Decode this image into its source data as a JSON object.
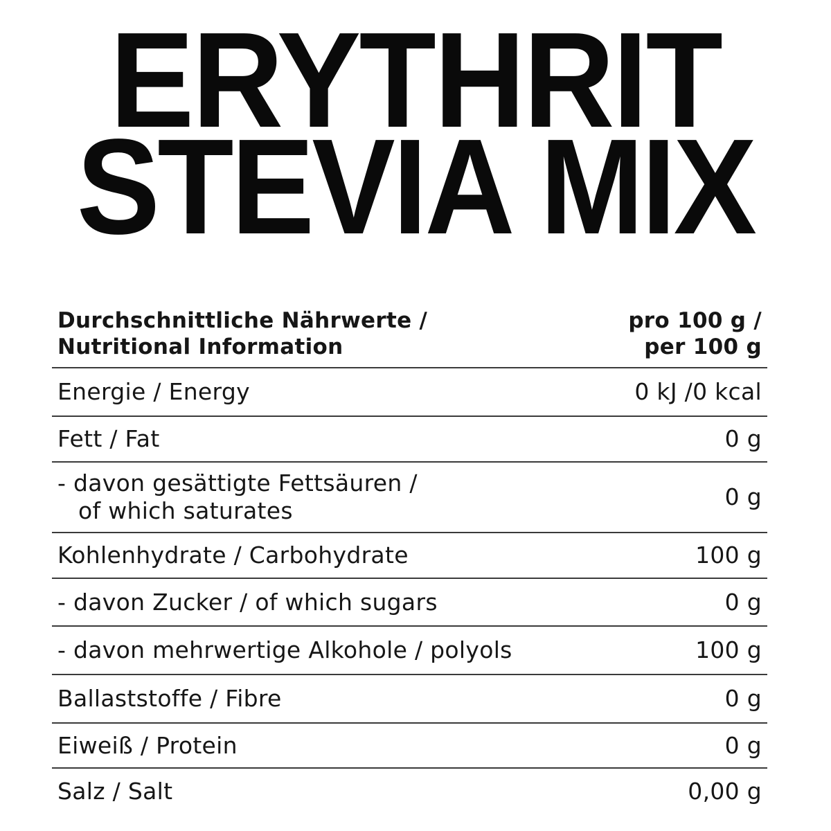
{
  "title": {
    "line1": "ERYTHRIT",
    "line2": "STEVIA MIX"
  },
  "table": {
    "header": {
      "label_de": "Durchschnittliche Nährwerte /",
      "label_en": "Nutritional Information",
      "value_de": "pro 100 g /",
      "value_en": "per 100 g"
    },
    "rows": [
      {
        "label": "Energie / Energy",
        "value": "0 kJ /0 kcal"
      },
      {
        "label": "Fett / Fat",
        "value": "0 g"
      },
      {
        "label": "- davon gesättigte Fettsäuren /",
        "label2": "of which saturates",
        "value": "0 g"
      },
      {
        "label": "Kohlenhydrate / Carbohydrate",
        "value": "100 g"
      },
      {
        "label": "- davon Zucker / of which sugars",
        "value": "0 g"
      },
      {
        "label": "- davon mehrwertige Alkohole / polyols",
        "value": "100 g"
      },
      {
        "label": "Ballaststoffe / Fibre",
        "value": "0 g"
      },
      {
        "label": "Eiweiß / Protein",
        "value": "0 g"
      },
      {
        "label": "Salz / Salt",
        "value": "0,00 g"
      }
    ]
  }
}
